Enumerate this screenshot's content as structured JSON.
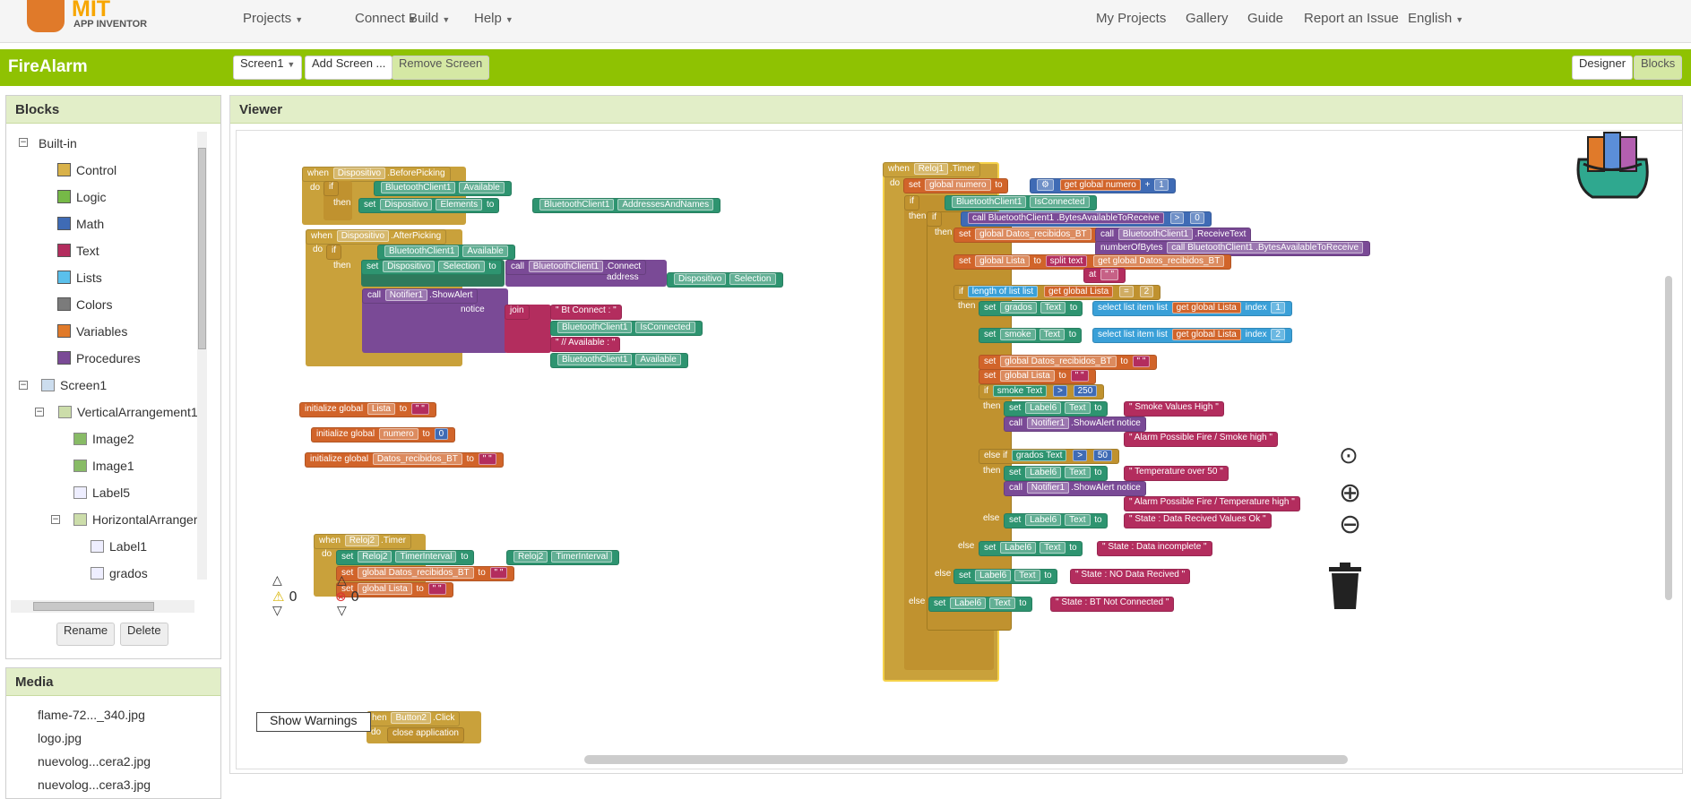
{
  "topbar": {
    "logo_mit": "MIT",
    "logo_app": "APP INVENTOR",
    "menus": [
      "Projects",
      "Connect",
      "Build",
      "Help"
    ],
    "right_links": [
      "My Projects",
      "Gallery",
      "Guide",
      "Report an Issue",
      "English"
    ]
  },
  "project": {
    "name": "FireAlarm",
    "screen_selector": "Screen1",
    "add_screen": "Add Screen ...",
    "remove_screen": "Remove Screen",
    "designer": "Designer",
    "blocks": "Blocks"
  },
  "blocks_panel": {
    "title": "Blocks",
    "builtin": "Built-in",
    "builtin_items": [
      {
        "label": "Control",
        "color": "#d9b24a"
      },
      {
        "label": "Logic",
        "color": "#76b947"
      },
      {
        "label": "Math",
        "color": "#3f6bb5"
      },
      {
        "label": "Text",
        "color": "#b32d5e"
      },
      {
        "label": "Lists",
        "color": "#5bc0eb"
      },
      {
        "label": "Colors",
        "color": "#7b7b7b"
      },
      {
        "label": "Variables",
        "color": "#e07a2a"
      },
      {
        "label": "Procedures",
        "color": "#7a4a96"
      }
    ],
    "screen": "Screen1",
    "components": [
      "VerticalArrangement1",
      "Image2",
      "Image1",
      "Label5",
      "HorizontalArranger",
      "Label1",
      "grados"
    ],
    "rename": "Rename",
    "delete": "Delete"
  },
  "media_panel": {
    "title": "Media",
    "files": [
      "flame-72..._340.jpg",
      "logo.jpg",
      "nuevolog...cera2.jpg",
      "nuevolog...cera3.jpg"
    ]
  },
  "viewer": {
    "title": "Viewer",
    "warnings_count": "0",
    "errors_count": "0",
    "show_warnings": "Show Warnings"
  },
  "blocks": {
    "b1": [
      "when",
      "Dispositivo",
      ".BeforePicking",
      "do",
      "if",
      "BluetoothClient1",
      "Available",
      "then",
      "set",
      "Dispositivo",
      "Elements",
      "to",
      "BluetoothClient1",
      "AddressesAndNames"
    ],
    "b2": [
      "when",
      "Dispositivo",
      ".AfterPicking",
      "do",
      "if",
      "BluetoothClient1",
      "Available",
      "then",
      "set",
      "Dispositivo",
      "Selection",
      "to",
      "call",
      "BluetoothClient1",
      ".Connect",
      "address",
      "Dispositivo",
      "Selection",
      "call",
      "Notifier1",
      ".ShowAlert",
      "notice",
      "join",
      "Bt Connect : ",
      "BluetoothClient1",
      "IsConnected",
      " // Available : ",
      "BluetoothClient1",
      "Available"
    ],
    "init1": [
      "initialize global",
      "Lista",
      "to"
    ],
    "init2": [
      "initialize global",
      "numero",
      "to",
      "0"
    ],
    "init3": [
      "initialize global",
      "Datos_recibidos_BT",
      "to"
    ],
    "b3": [
      "when",
      "Reloj2",
      ".Timer",
      "do",
      "set",
      "Reloj2",
      "TimerInterval",
      "to",
      "Reloj2",
      "TimerInterval",
      "set",
      "global Datos_recibidos_BT",
      "to",
      "set",
      "global Lista",
      "to"
    ],
    "b4": [
      "hen",
      "Button2",
      ".Click",
      "do",
      "close application"
    ],
    "main": [
      "when",
      "Reloj1",
      ".Timer",
      "do",
      "set",
      "global numero",
      "to",
      "get",
      "global numero",
      "+",
      "1",
      "if",
      "BluetoothClient1",
      "IsConnected",
      "then",
      "if",
      "call",
      "BluetoothClient1",
      ".BytesAvailableToReceive",
      ">",
      "0",
      "then",
      "set",
      "global Datos_recibidos_BT",
      "to",
      "call",
      "BluetoothClient1",
      ".ReceiveText",
      "numberOfBytes",
      "call",
      "BluetoothClient1",
      ".BytesAvailableToReceive",
      "set",
      "global Lista",
      "to",
      "split",
      "text",
      "get",
      "global Datos_recibidos_BT",
      "at",
      "if",
      "length of list",
      "list",
      "get",
      "global Lista",
      "=",
      "2",
      "then",
      "set",
      "grados",
      "Text",
      "to",
      "select list item",
      "list",
      "get",
      "global Lista",
      "index",
      "1",
      "set",
      "smoke",
      "Text",
      "to",
      "select list item",
      "list",
      "get",
      "global Lista",
      "index",
      "2",
      "set",
      "global Datos_recibidos_BT",
      "to",
      "set",
      "global Lista",
      "to",
      "if",
      "smoke",
      "Text",
      ">",
      "250",
      "then",
      "set",
      "Label6",
      "Text",
      "to",
      "Smoke Values High",
      "call",
      "Notifier1",
      ".ShowAlert",
      "notice",
      "Alarm Possible Fire / Smoke high",
      "else if",
      "grados",
      "Text",
      ">",
      "50",
      "then",
      "set",
      "Label6",
      "Text",
      "to",
      "Temperature over 50",
      "call",
      "Notifier1",
      ".ShowAlert",
      "notice",
      "Alarm Possible Fire / Temperature high",
      "else",
      "set",
      "Label6",
      "Text",
      "to",
      "State : Data Recived Values Ok",
      "else",
      "set",
      "Label6",
      "Text",
      "to",
      "State : Data incomplete",
      "else",
      "set",
      "Label6",
      "Text",
      "to",
      "State : NO Data Recived",
      "else",
      "set",
      "Label6",
      "Text",
      "to",
      "State : BT Not Connected"
    ]
  }
}
